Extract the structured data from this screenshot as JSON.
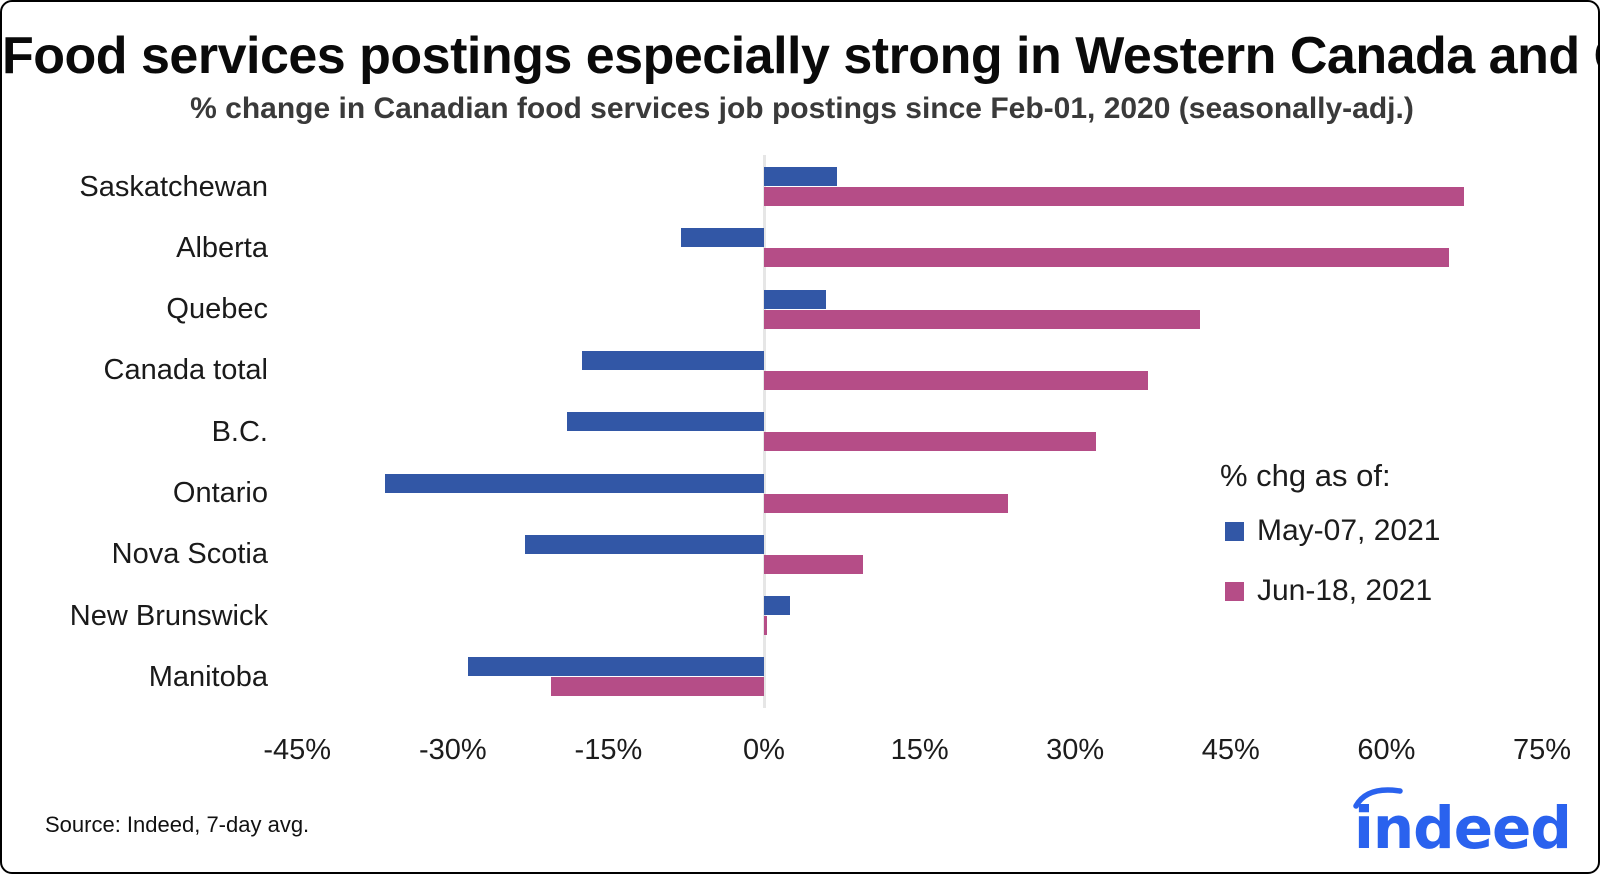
{
  "title": "Food services postings especially strong in Western Canada and Quebec",
  "subtitle": "% change in Canadian food services job postings since Feb-01, 2020 (seasonally-adj.)",
  "source": "Source: Indeed, 7-day avg.",
  "logo_text": "indeed",
  "legend": {
    "title": "% chg as of:",
    "items": [
      {
        "label": "May-07, 2021",
        "color": "#3257A6"
      },
      {
        "label": "Jun-18, 2021",
        "color": "#B54D87"
      }
    ],
    "position": "right-middle"
  },
  "colors": {
    "bar_blue": "#3257A6",
    "bar_pink": "#B54D87",
    "logo_blue": "#2A62EE",
    "axis_line": "#E6E6E6"
  },
  "chart_data": {
    "type": "bar",
    "orientation": "horizontal",
    "title": "Food services postings especially strong in Western Canada and Quebec",
    "subtitle": "% change in Canadian food services job postings since Feb-01, 2020 (seasonally-adj.)",
    "categories": [
      "Saskatchewan",
      "Alberta",
      "Quebec",
      "Canada total",
      "B.C.",
      "Ontario",
      "Nova Scotia",
      "New Brunswick",
      "Manitoba"
    ],
    "series": [
      {
        "name": "May-07, 2021",
        "color": "#3257A6",
        "values": [
          7,
          -8,
          6,
          -17.5,
          -19,
          -36.5,
          -23,
          2.5,
          -28.5
        ]
      },
      {
        "name": "Jun-18, 2021",
        "color": "#B54D87",
        "values": [
          67.5,
          66,
          42,
          37,
          32,
          23.5,
          9.5,
          0.3,
          -20.5
        ]
      }
    ],
    "xlabel": "",
    "ylabel": "",
    "xlim": [
      -45,
      75
    ],
    "x_tick_values": [
      -45,
      -30,
      -15,
      0,
      15,
      30,
      45,
      60,
      75
    ],
    "x_tick_labels": [
      "-45%",
      "-30%",
      "-15%",
      "0%",
      "15%",
      "30%",
      "45%",
      "60%",
      "75%"
    ],
    "grid": false,
    "legend_position": "right-middle",
    "unit": "%"
  }
}
